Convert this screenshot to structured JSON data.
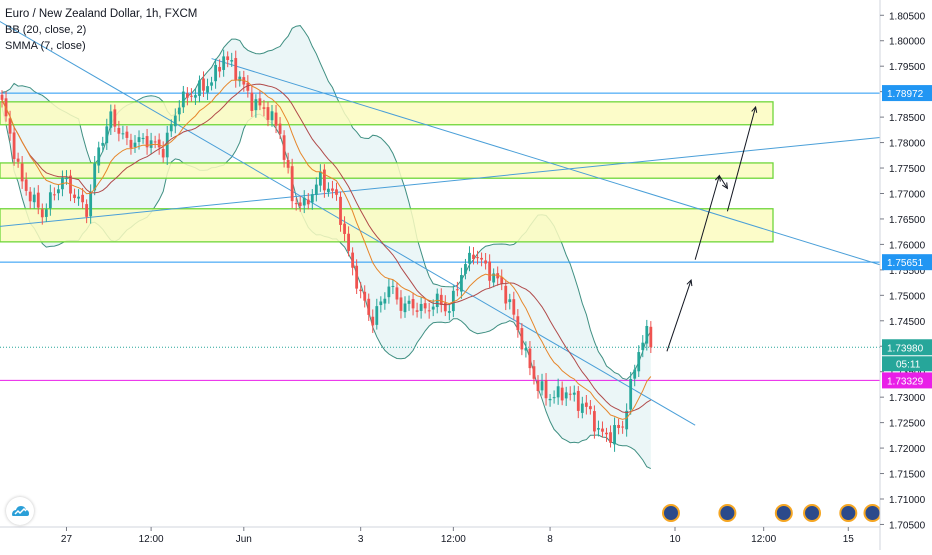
{
  "chart_data": {
    "type": "candlestick",
    "title": "Euro / New Zealand Dollar, 1h, FXCM",
    "indicators": [
      "BB (20, close, 2)",
      "SMMA (7, close)"
    ],
    "ylim": [
      1.7045,
      1.808
    ],
    "y_ticks": [
      "1.80500",
      "1.80000",
      "1.79500",
      "1.79000",
      "1.78500",
      "1.78000",
      "1.77500",
      "1.77000",
      "1.76500",
      "1.76000",
      "1.75500",
      "1.75000",
      "1.74500",
      "1.74000",
      "1.73500",
      "1.73000",
      "1.72500",
      "1.72000",
      "1.71500",
      "1.71000",
      "1.70500"
    ],
    "x_ticks": [
      {
        "label": "27",
        "bar": 16
      },
      {
        "label": "12:00",
        "bar": 37
      },
      {
        "label": "Jun",
        "bar": 60
      },
      {
        "label": "3",
        "bar": 89
      },
      {
        "label": "12:00",
        "bar": 112
      },
      {
        "label": "8",
        "bar": 136
      },
      {
        "label": "10",
        "bar": 167
      },
      {
        "label": "12:00",
        "bar": 189
      },
      {
        "label": "15",
        "bar": 210
      }
    ],
    "close_path": [
      [
        0,
        1.7878
      ],
      [
        5,
        1.772
      ],
      [
        10,
        1.766
      ],
      [
        15,
        1.773
      ],
      [
        21,
        1.7665
      ],
      [
        24,
        1.779
      ],
      [
        27,
        1.785
      ],
      [
        31,
        1.78
      ],
      [
        36,
        1.7805
      ],
      [
        40,
        1.7785
      ],
      [
        44,
        1.788
      ],
      [
        48,
        1.79
      ],
      [
        52,
        1.792
      ],
      [
        55,
        1.797
      ],
      [
        58,
        1.794
      ],
      [
        62,
        1.788
      ],
      [
        66,
        1.786
      ],
      [
        69,
        1.782
      ],
      [
        72,
        1.769
      ],
      [
        75,
        1.7675
      ],
      [
        79,
        1.773
      ],
      [
        83,
        1.769
      ],
      [
        86,
        1.758
      ],
      [
        89,
        1.75
      ],
      [
        92,
        1.745
      ],
      [
        96,
        1.752
      ],
      [
        99,
        1.748
      ],
      [
        102,
        1.748
      ],
      [
        105,
        1.747
      ],
      [
        108,
        1.749
      ],
      [
        111,
        1.747
      ],
      [
        114,
        1.7545
      ],
      [
        117,
        1.7585
      ],
      [
        121,
        1.7545
      ],
      [
        124,
        1.752
      ],
      [
        127,
        1.746
      ],
      [
        130,
        1.738
      ],
      [
        133,
        1.732
      ],
      [
        136,
        1.73
      ],
      [
        140,
        1.731
      ],
      [
        143,
        1.729
      ],
      [
        146,
        1.727
      ],
      [
        148,
        1.723
      ],
      [
        151,
        1.7225
      ],
      [
        154,
        1.7245
      ],
      [
        156,
        1.732
      ],
      [
        158,
        1.7395
      ],
      [
        160,
        1.7425
      ],
      [
        161,
        1.7398
      ]
    ],
    "current_bar": 161,
    "price_levels": [
      {
        "price": 1.78972,
        "label": "1.78972",
        "color": "#2196f3",
        "style": "solid"
      },
      {
        "price": 1.75651,
        "label": "1.75651",
        "color": "#2196f3",
        "style": "solid"
      },
      {
        "price": 1.7398,
        "label": "1.73980",
        "color": "#26a69a",
        "style": "dotted"
      },
      {
        "price": 1.73329,
        "label": "1.73329",
        "color": "#e91ee8",
        "style": "solid"
      }
    ],
    "countdown": "05:11",
    "zones": [
      {
        "from": 1.7835,
        "to": 1.788
      },
      {
        "from": 1.773,
        "to": 1.776
      },
      {
        "from": 1.7605,
        "to": 1.767
      }
    ],
    "trendlines": [
      {
        "p1": [
          -1,
          1.804
        ],
        "p2": [
          172,
          1.7245
        ],
        "color": "#4a9fd8"
      },
      {
        "p1": [
          -1,
          1.7635
        ],
        "p2": [
          220,
          1.781
        ],
        "color": "#4a9fd8"
      },
      {
        "p1": [
          52,
          1.7965
        ],
        "p2": [
          220,
          1.756
        ],
        "color": "#4a9fd8"
      }
    ],
    "projection_arrows": [
      {
        "from": [
          165,
          1.739
        ],
        "to": [
          171,
          1.753
        ]
      },
      {
        "from": [
          172,
          1.757
        ],
        "to": [
          178,
          1.7735
        ]
      },
      {
        "from": [
          178,
          1.7735
        ],
        "to": [
          180,
          1.771
        ]
      },
      {
        "from": [
          180,
          1.7665
        ],
        "to": [
          187,
          1.787
        ]
      }
    ],
    "grid": false,
    "colors": {
      "up": "#26a69a",
      "down": "#ef5350",
      "bb": "#3f8f82",
      "smma": "#e6862a",
      "basis": "#b04a4a",
      "zone_fill": "#fcfcc0",
      "zone_border": "#6fd63a"
    }
  }
}
